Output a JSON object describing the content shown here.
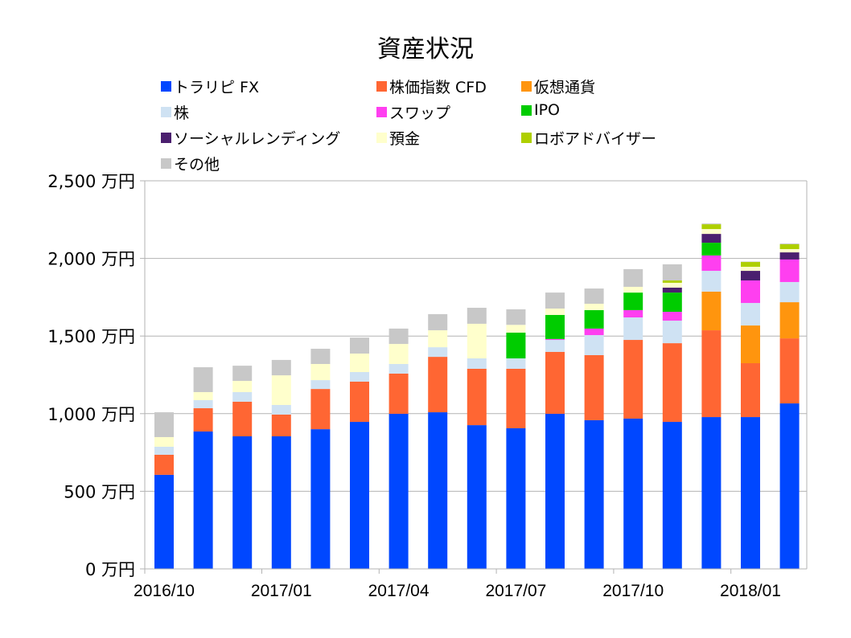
{
  "chart_data": {
    "type": "bar",
    "stacked": true,
    "title": "資産状況",
    "xlabel": "",
    "ylabel": "",
    "ylim": [
      0,
      2500
    ],
    "yticks": [
      0,
      500,
      1000,
      1500,
      2000,
      2500
    ],
    "ytick_labels": [
      "0 万円",
      "500 万円",
      "1,000 万円",
      "1,500 万円",
      "2,000 万円",
      "2,500 万円"
    ],
    "categories": [
      "2016/10",
      "2016/11",
      "2016/12",
      "2017/01",
      "2017/02",
      "2017/03",
      "2017/04",
      "2017/05",
      "2017/06",
      "2017/07",
      "2017/08",
      "2017/09",
      "2017/10",
      "2017/11",
      "2017/12",
      "2018/01",
      "2018/02"
    ],
    "xtick_labels": [
      {
        "label": "2016/10",
        "index": 0
      },
      {
        "label": "2017/01",
        "index": 3
      },
      {
        "label": "2017/04",
        "index": 6
      },
      {
        "label": "2017/07",
        "index": 9
      },
      {
        "label": "2017/10",
        "index": 12
      },
      {
        "label": "2018/01",
        "index": 15
      }
    ],
    "grid": true,
    "legend_position": "top",
    "series": [
      {
        "name": "トラリピ FX",
        "color": "#0047ff",
        "values": [
          606,
          885,
          854,
          854,
          900,
          947,
          999,
          1009,
          926,
          906,
          999,
          958,
          968,
          947,
          978,
          978,
          1066
        ]
      },
      {
        "name": "株価指数 CFD",
        "color": "#ff6633",
        "values": [
          129,
          150,
          223,
          140,
          259,
          259,
          259,
          357,
          363,
          383,
          399,
          419,
          507,
          507,
          559,
          347,
          419
        ]
      },
      {
        "name": "仮想通貨",
        "color": "#ff950e",
        "values": [
          0,
          0,
          0,
          0,
          0,
          0,
          0,
          0,
          0,
          0,
          0,
          0,
          0,
          0,
          249,
          243,
          233
        ]
      },
      {
        "name": "株",
        "color": "#cfe2f3",
        "values": [
          52,
          52,
          62,
          62,
          57,
          62,
          62,
          62,
          67,
          67,
          77,
          129,
          145,
          145,
          134,
          145,
          130
        ]
      },
      {
        "name": "スワップ",
        "color": "#ff3ff0",
        "values": [
          0,
          0,
          0,
          0,
          0,
          0,
          0,
          0,
          0,
          0,
          6,
          42,
          47,
          57,
          99,
          145,
          145
        ]
      },
      {
        "name": "IPO",
        "color": "#00cc00",
        "values": [
          0,
          0,
          0,
          0,
          0,
          0,
          0,
          0,
          0,
          166,
          155,
          119,
          113,
          124,
          82,
          0,
          0
        ]
      },
      {
        "name": "ソーシャルレンディング",
        "color": "#4b1f6f",
        "values": [
          0,
          0,
          0,
          0,
          0,
          0,
          0,
          0,
          0,
          0,
          0,
          0,
          0,
          32,
          57,
          62,
          46
        ]
      },
      {
        "name": "預金",
        "color": "#ffffcc",
        "values": [
          62,
          52,
          72,
          191,
          104,
          119,
          129,
          109,
          223,
          50,
          41,
          41,
          37,
          31,
          31,
          26,
          21
        ]
      },
      {
        "name": "ロボアドバイザー",
        "color": "#aecf00",
        "values": [
          0,
          0,
          0,
          0,
          0,
          0,
          0,
          0,
          0,
          0,
          0,
          0,
          0,
          15,
          31,
          31,
          31
        ]
      },
      {
        "name": "その他",
        "color": "#c8c8c8",
        "values": [
          160,
          160,
          98,
          99,
          98,
          103,
          99,
          104,
          103,
          100,
          103,
          98,
          114,
          104,
          5,
          3,
          5
        ]
      }
    ]
  },
  "legend_layout": [
    [
      "トラリピ FX",
      "株価指数 CFD",
      "仮想通貨"
    ],
    [
      "株",
      "スワップ",
      "IPO"
    ],
    [
      "ソーシャルレンディング",
      "預金",
      "ロボアドバイザー"
    ],
    [
      "その他"
    ]
  ]
}
